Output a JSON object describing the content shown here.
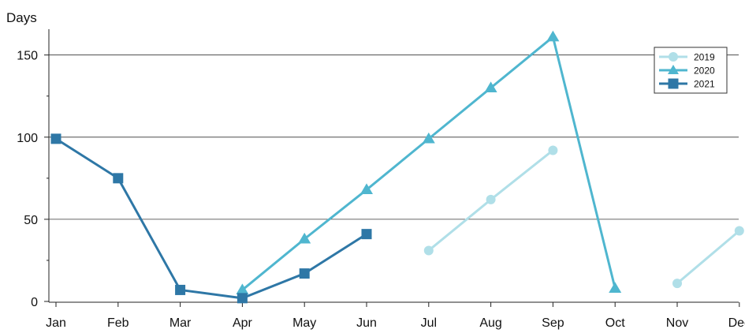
{
  "chart_data": {
    "type": "line",
    "ylabel": "Days",
    "xlabel": "",
    "categories": [
      "Jan",
      "Feb",
      "Mar",
      "Apr",
      "May",
      "Jun",
      "Jul",
      "Aug",
      "Sep",
      "Oct",
      "Nov",
      "Dec"
    ],
    "yticks": [
      0,
      50,
      100,
      150
    ],
    "ylim": [
      -2,
      167
    ],
    "grid": "horizontal",
    "legend_position": "top-right",
    "series": [
      {
        "name": "2019",
        "color": "#b0dfe8",
        "marker": "circle",
        "values": [
          null,
          null,
          null,
          null,
          null,
          null,
          31,
          62,
          92,
          null,
          11,
          43
        ]
      },
      {
        "name": "2020",
        "color": "#4fb6cf",
        "marker": "triangle",
        "values": [
          null,
          null,
          null,
          7,
          38,
          68,
          99,
          130,
          161,
          8,
          null,
          null
        ]
      },
      {
        "name": "2021",
        "color": "#2e77a6",
        "marker": "square",
        "values": [
          99,
          75,
          7,
          2,
          17,
          41,
          null,
          null,
          null,
          null,
          null,
          null
        ]
      }
    ]
  }
}
